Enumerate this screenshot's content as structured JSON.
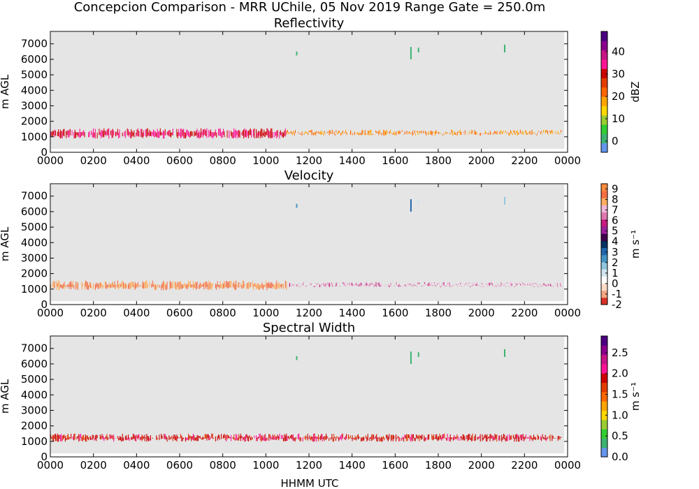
{
  "figure": {
    "suptitle": "Concepcion Comparison - MRR UChile, 05 Nov 2019 Range Gate = 250.0m",
    "xlabel": "HHMM UTC"
  },
  "chart_data": [
    {
      "type": "heatmap",
      "title": "Reflectivity",
      "ylabel": "m AGL",
      "xlim_hours": [
        0,
        24
      ],
      "ylim": [
        0,
        7800
      ],
      "xticks": [
        "0000",
        "0200",
        "0400",
        "0600",
        "0800",
        "1000",
        "1200",
        "1400",
        "1600",
        "1800",
        "2000",
        "2200",
        "0000"
      ],
      "yticks": [
        0,
        1000,
        2000,
        3000,
        4000,
        5000,
        6000,
        7000
      ],
      "background": "#e5e5e5",
      "colorbar": {
        "label": "dBZ",
        "range": [
          -5,
          49
        ],
        "ticks": [
          0,
          10,
          20,
          30,
          40
        ],
        "colors": [
          "#6495ed",
          "#3cb371",
          "#32cd32",
          "#9acd32",
          "#ffd700",
          "#ffa500",
          "#ff6600",
          "#e23b00",
          "#cc0000",
          "#ff1493",
          "#c71585",
          "#8b008b",
          "#4b0082"
        ]
      },
      "bands": [
        {
          "t0": 0.0,
          "t1": 10.9,
          "h0": 700,
          "h1": 1500,
          "value": 32
        },
        {
          "t0": 10.9,
          "t1": 23.7,
          "h0": 900,
          "h1": 1400,
          "value": 20
        }
      ],
      "features": [
        {
          "t": 11.4,
          "h0": 6250,
          "h1": 6500,
          "value": 0
        },
        {
          "t": 16.7,
          "h0": 6000,
          "h1": 6800,
          "value": 0
        },
        {
          "t": 17.05,
          "h0": 6450,
          "h1": 6750,
          "value": 0
        },
        {
          "t": 21.05,
          "h0": 6450,
          "h1": 6950,
          "value": 0
        }
      ]
    },
    {
      "type": "heatmap",
      "title": "Velocity",
      "ylabel": "m s⁻¹",
      "xlim_hours": [
        0,
        24
      ],
      "ylim": [
        0,
        7800
      ],
      "xticks": [
        "0000",
        "0200",
        "0400",
        "0600",
        "0800",
        "1000",
        "1200",
        "1400",
        "1600",
        "1800",
        "2000",
        "2200",
        "0000"
      ],
      "yticks": [
        0,
        1000,
        2000,
        3000,
        4000,
        5000,
        6000,
        7000
      ],
      "background": "#e5e5e5",
      "colorbar": {
        "label": "m s⁻¹",
        "range": [
          -2,
          9.5
        ],
        "ticks": [
          -2,
          -1,
          0,
          1,
          2,
          3,
          4,
          5,
          6,
          7,
          8,
          9
        ],
        "colors": [
          "#d73027",
          "#f4a582",
          "#fddbc7",
          "#ffffff",
          "#d1e5f0",
          "#92c5de",
          "#4393c3",
          "#2166ac",
          "#053061",
          "#40004b",
          "#9b1f9b",
          "#c51b7d",
          "#de77ae",
          "#f1b6da",
          "#fdae61",
          "#f46d43",
          "#f88a3c"
        ]
      },
      "bands": [
        {
          "t0": 0.0,
          "t1": 11.0,
          "h0": 750,
          "h1": 1500,
          "value": 8.2
        },
        {
          "t0": 11.0,
          "t1": 23.7,
          "h0": 950,
          "h1": 1400,
          "value": 6.5
        }
      ],
      "features": [
        {
          "t": 11.4,
          "h0": 6250,
          "h1": 6500,
          "value": 2.5
        },
        {
          "t": 16.7,
          "h0": 6000,
          "h1": 6800,
          "value": 2.8
        },
        {
          "t": 17.05,
          "h0": 6450,
          "h1": 6750,
          "value": 0.9
        },
        {
          "t": 21.05,
          "h0": 6450,
          "h1": 6950,
          "value": 2.0
        }
      ]
    },
    {
      "type": "heatmap",
      "title": "Spectral Width",
      "ylabel": "m s⁻¹",
      "xlim_hours": [
        0,
        24
      ],
      "ylim": [
        0,
        7800
      ],
      "xticks": [
        "0000",
        "0200",
        "0400",
        "0600",
        "0800",
        "1000",
        "1200",
        "1400",
        "1600",
        "1800",
        "2000",
        "2200",
        "0000"
      ],
      "yticks": [
        0,
        1000,
        2000,
        3000,
        4000,
        5000,
        6000,
        7000
      ],
      "background": "#e5e5e5",
      "colorbar": {
        "label": "m s⁻¹",
        "range": [
          0,
          2.9
        ],
        "ticks": [
          0.0,
          0.5,
          1.0,
          1.5,
          2.0,
          2.5
        ],
        "colors": [
          "#6495ed",
          "#3cb371",
          "#32cd32",
          "#9acd32",
          "#ffd700",
          "#ffa500",
          "#ff6600",
          "#e23b00",
          "#cc0000",
          "#ff1493",
          "#c71585",
          "#8b008b",
          "#4b0082"
        ]
      },
      "bands": [
        {
          "t0": 0.0,
          "t1": 23.7,
          "h0": 800,
          "h1": 1450,
          "value": 1.9
        }
      ],
      "features": [
        {
          "t": 11.4,
          "h0": 6250,
          "h1": 6500,
          "value": 0.4
        },
        {
          "t": 16.7,
          "h0": 6000,
          "h1": 6800,
          "value": 0.4
        },
        {
          "t": 17.05,
          "h0": 6450,
          "h1": 6750,
          "value": 0.4
        },
        {
          "t": 21.05,
          "h0": 6450,
          "h1": 6950,
          "value": 0.4
        }
      ]
    }
  ]
}
